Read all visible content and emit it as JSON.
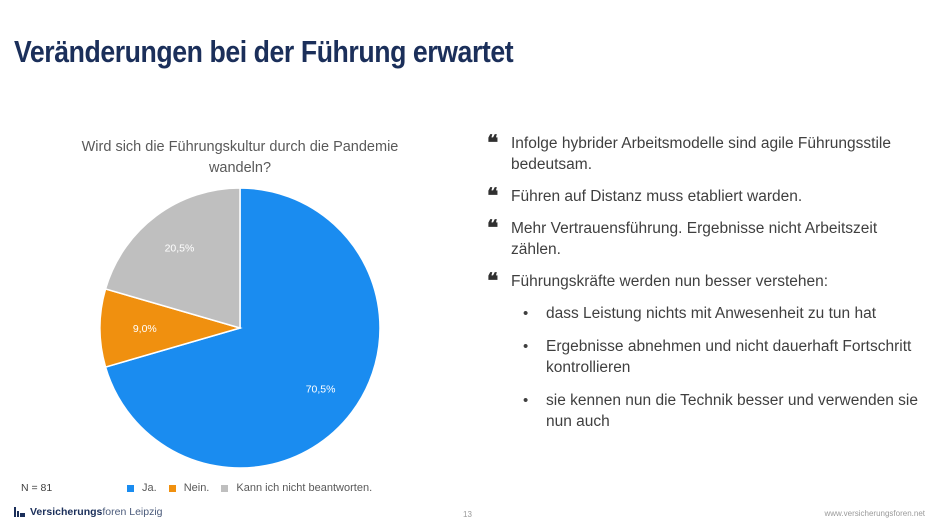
{
  "slide": {
    "title": "Veränderungen bei der Führung erwartet",
    "page_number": "13",
    "website": "www.versicherungsforen.net",
    "logo": {
      "strong": "Versicherungs",
      "light": "foren Leipzig"
    }
  },
  "chart_data": {
    "type": "pie",
    "title": "Wird sich die Führungskultur  durch die Pandemie wandeln?",
    "categories": [
      "Ja.",
      "Nein.",
      "Kann ich nicht beantworten."
    ],
    "values": [
      70.5,
      9.0,
      20.5
    ],
    "value_labels": [
      "70,5%",
      "9,0%",
      "20,5%"
    ],
    "colors": [
      "#1a8cf0",
      "#f0900f",
      "#bfbfbf"
    ],
    "start_angle_deg": 0,
    "direction": "clockwise",
    "legend_position": "bottom",
    "sample_note": "N = 81"
  },
  "quotes": [
    "Infolge hybrider Arbeitsmodelle sind agile Führungsstile bedeutsam.",
    "Führen auf Distanz muss etabliert warden.",
    "Mehr Vertrauensführung. Ergebnisse nicht Arbeitszeit zählen.",
    "Führungskräfte werden nun besser verstehen:"
  ],
  "bullets": [
    "dass Leistung nichts mit Anwesenheit zu tun hat",
    "Ergebnisse abnehmen und nicht dauerhaft Fortschritt kontrollieren",
    "sie kennen nun die Technik besser und verwenden sie nun auch"
  ]
}
